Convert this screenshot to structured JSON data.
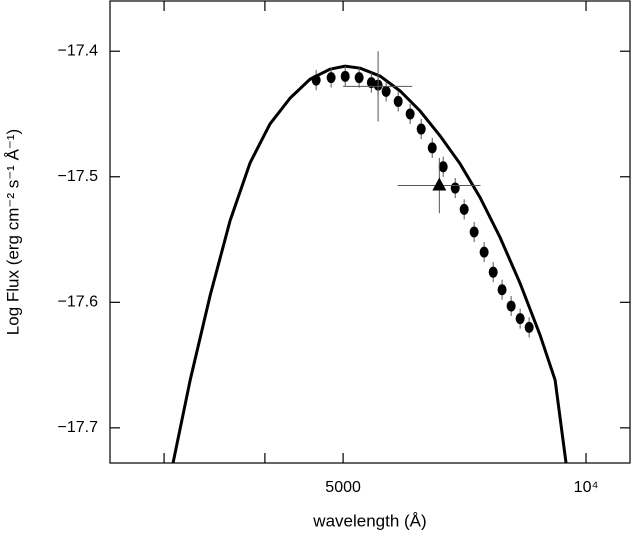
{
  "chart_data": {
    "type": "scatter",
    "x_label": "wavelength (Å)",
    "y_label": "Log Flux (erg cm⁻² s⁻¹ Å⁻¹)",
    "xscale": "log",
    "xlim": [
      2571,
      11337
    ],
    "ylim": [
      -17.728,
      -17.36
    ],
    "xticks": [
      5000,
      {
        "value": 10000,
        "label": "10⁴"
      }
    ],
    "xminorticks": [
      3000,
      4000
    ],
    "yticks": [
      {
        "value": -17.4,
        "label": "−17.4"
      },
      {
        "value": -17.5,
        "label": "−17.5"
      },
      {
        "value": -17.6,
        "label": "−17.6"
      },
      {
        "value": -17.7,
        "label": "−17.7"
      }
    ],
    "color": "#000000",
    "points": {
      "x": [
        4630,
        4832,
        5030,
        5234,
        5420,
        5525,
        5653,
        5851,
        6054,
        6248,
        6448,
        6653,
        6885,
        7063,
        7267,
        7477,
        7673,
        7870,
        8076,
        8286,
        8502
      ],
      "y": [
        -17.423,
        -17.421,
        -17.42,
        -17.421,
        -17.425,
        -17.427,
        -17.432,
        -17.44,
        -17.45,
        -17.462,
        -17.477,
        -17.492,
        -17.509,
        -17.526,
        -17.544,
        -17.56,
        -17.576,
        -17.59,
        -17.603,
        -17.613,
        -17.62
      ],
      "yerr": 0.008
    },
    "cross": {
      "x": 5525,
      "xlow": 5000,
      "xhigh": 6090,
      "y": -17.428,
      "yerr": 0.028
    },
    "triangle": {
      "x": 6580,
      "xlow": 5845,
      "xhigh": 7400,
      "y": -17.507,
      "yerr": 0.022
    },
    "model": {
      "x": [
        3078,
        3232,
        3422,
        3622,
        3835,
        4059,
        4299,
        4550,
        4818,
        5029,
        5250,
        5557,
        5884,
        6229,
        6596,
        6982,
        7393,
        7826,
        8285,
        8773,
        9156,
        9446
      ],
      "y": [
        -17.7278,
        -17.6619,
        -17.5944,
        -17.5349,
        -17.4889,
        -17.4579,
        -17.4373,
        -17.4222,
        -17.4143,
        -17.4119,
        -17.4135,
        -17.4198,
        -17.4317,
        -17.4476,
        -17.4675,
        -17.4897,
        -17.5167,
        -17.5484,
        -17.5849,
        -17.6262,
        -17.6619,
        -17.7278
      ]
    }
  }
}
